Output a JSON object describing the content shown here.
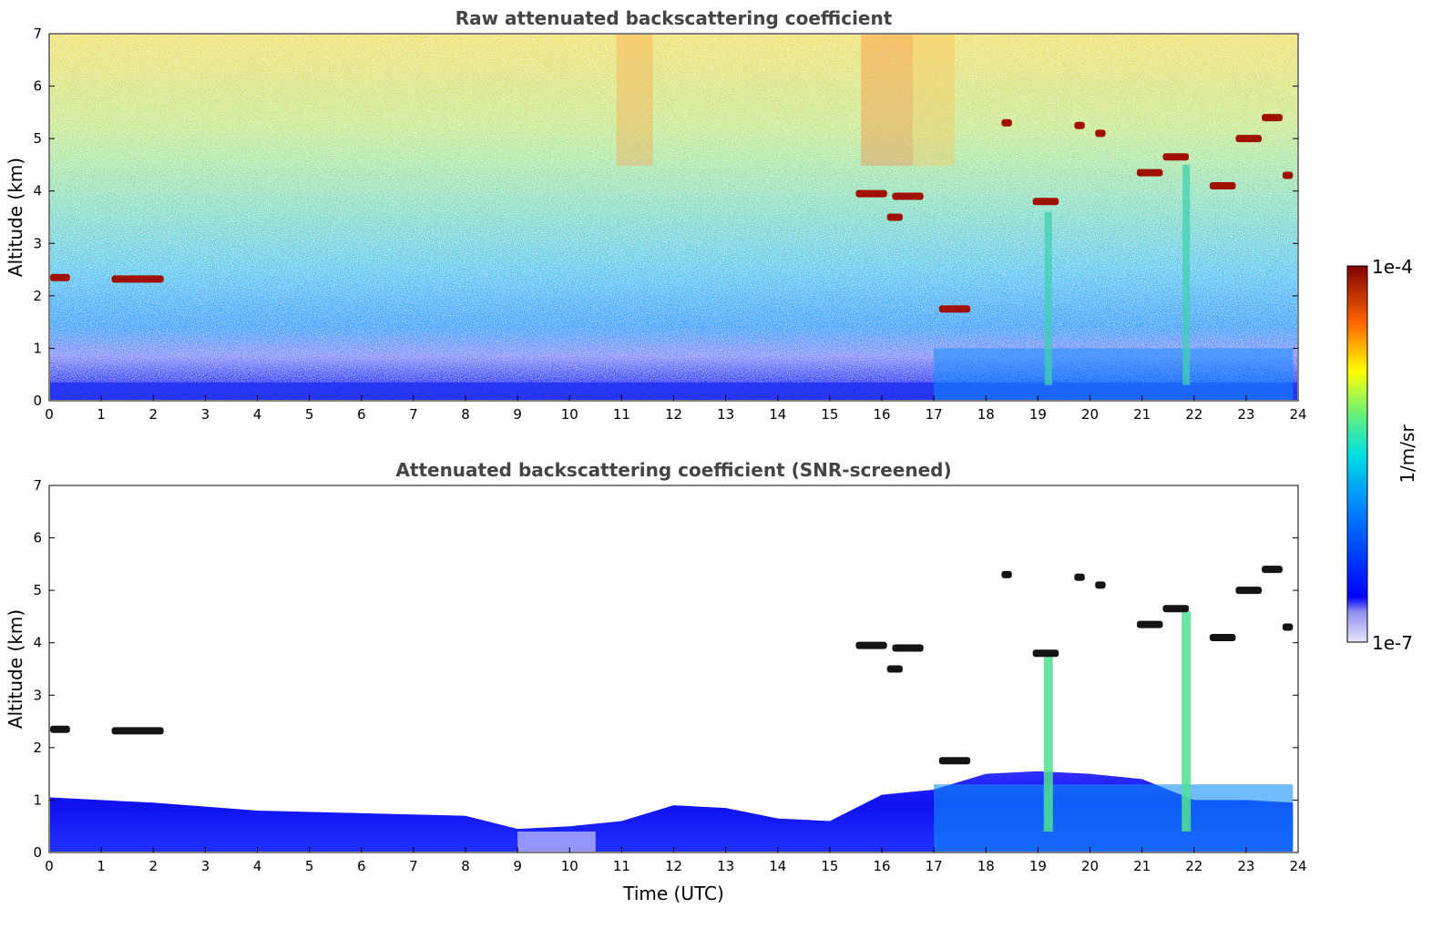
{
  "chart_data": [
    {
      "type": "heatmap",
      "title": "Raw attenuated backscattering coefficient",
      "xlabel": "",
      "ylabel": "Altitude (km)",
      "xlim": [
        0,
        24
      ],
      "ylim": [
        0,
        7
      ],
      "xticks": [
        "0",
        "1",
        "2",
        "3",
        "4",
        "5",
        "6",
        "7",
        "8",
        "9",
        "10",
        "11",
        "12",
        "13",
        "14",
        "15",
        "16",
        "17",
        "18",
        "19",
        "20",
        "21",
        "22",
        "23",
        "24"
      ],
      "yticks": [
        "0",
        "1",
        "2",
        "3",
        "4",
        "5",
        "6",
        "7"
      ],
      "grid": false,
      "cloud_layers": [
        {
          "x": [
            0,
            0.4
          ],
          "y": 2.35
        },
        {
          "x": [
            1.2,
            2.2
          ],
          "y": 2.32
        },
        {
          "x": [
            15.5,
            16.1
          ],
          "y": 3.95
        },
        {
          "x": [
            16.2,
            16.8
          ],
          "y": 3.9
        },
        {
          "x": [
            16.1,
            16.4
          ],
          "y": 3.5
        },
        {
          "x": [
            17.1,
            17.7
          ],
          "y": 1.75
        },
        {
          "x": [
            18.9,
            19.4
          ],
          "y": 3.8
        },
        {
          "x": [
            18.3,
            18.5
          ],
          "y": 5.3
        },
        {
          "x": [
            19.7,
            19.9
          ],
          "y": 5.25
        },
        {
          "x": [
            20.1,
            20.3
          ],
          "y": 5.1
        },
        {
          "x": [
            20.9,
            21.4
          ],
          "y": 4.35
        },
        {
          "x": [
            21.4,
            21.9
          ],
          "y": 4.65
        },
        {
          "x": [
            22.3,
            22.8
          ],
          "y": 4.1
        },
        {
          "x": [
            22.8,
            23.3
          ],
          "y": 5.0
        },
        {
          "x": [
            23.3,
            23.7
          ],
          "y": 5.4
        },
        {
          "x": [
            23.7,
            23.9
          ],
          "y": 4.3
        }
      ]
    },
    {
      "type": "heatmap",
      "title": "Attenuated backscattering coefficient (SNR-screened)",
      "xlabel": "Time (UTC)",
      "ylabel": "Altitude (km)",
      "xlim": [
        0,
        24
      ],
      "ylim": [
        0,
        7
      ],
      "xticks": [
        "0",
        "1",
        "2",
        "3",
        "4",
        "5",
        "6",
        "7",
        "8",
        "9",
        "10",
        "11",
        "12",
        "13",
        "14",
        "15",
        "16",
        "17",
        "18",
        "19",
        "20",
        "21",
        "22",
        "23",
        "24"
      ],
      "yticks": [
        "0",
        "1",
        "2",
        "3",
        "4",
        "5",
        "6",
        "7"
      ],
      "grid": false,
      "boundary_layer_top_km": {
        "x": [
          0,
          2,
          4,
          6,
          8,
          9,
          10,
          11,
          12,
          13,
          14,
          15,
          16,
          17,
          18,
          19,
          20,
          21,
          22,
          23,
          24
        ],
        "y": [
          1.05,
          0.95,
          0.8,
          0.75,
          0.7,
          0.45,
          0.5,
          0.6,
          0.9,
          0.85,
          0.65,
          0.6,
          1.1,
          1.2,
          1.5,
          1.55,
          1.5,
          1.4,
          1.0,
          1.0,
          0.95
        ]
      }
    }
  ],
  "colorbar": {
    "label": "1/m/sr",
    "max_label": "1e-4",
    "min_label": "1e-7",
    "scale": "log",
    "colormap": [
      "#e6e6fa",
      "#0000ff",
      "#00c8ff",
      "#7fff7f",
      "#ffff00",
      "#ff6400",
      "#800000"
    ]
  }
}
